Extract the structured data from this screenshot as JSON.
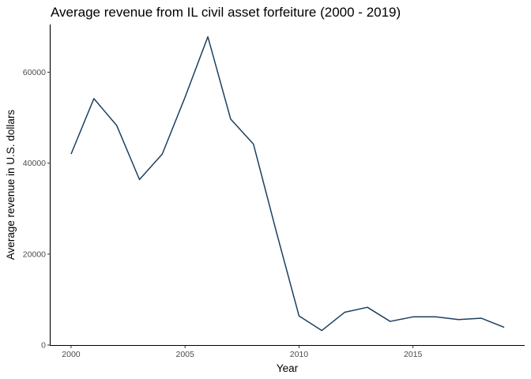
{
  "chart_data": {
    "type": "line",
    "title": "Average revenue from IL civil asset forfeiture (2000 - 2019)",
    "xlabel": "Year",
    "ylabel": "Average revenue in U.S. dollars",
    "x": [
      2000,
      2001,
      2002,
      2003,
      2004,
      2005,
      2006,
      2007,
      2008,
      2009,
      2010,
      2011,
      2012,
      2013,
      2014,
      2015,
      2016,
      2017,
      2018,
      2019
    ],
    "series": [
      {
        "values": [
          42000,
          54200,
          48300,
          36400,
          42000,
          54500,
          67800,
          49700,
          44200,
          25000,
          6400,
          3200,
          7200,
          8300,
          5200,
          6200,
          6200,
          5600,
          5900,
          3900
        ]
      }
    ],
    "xlim": [
      1999.1,
      2019.9
    ],
    "ylim": [
      0,
      70500
    ],
    "x_ticks": [
      "2000",
      "2005",
      "2010",
      "2015"
    ],
    "y_ticks": [
      "0",
      "20000",
      "40000",
      "60000"
    ],
    "grid": false,
    "legend": "none",
    "line_color": "#1d3f5e"
  }
}
